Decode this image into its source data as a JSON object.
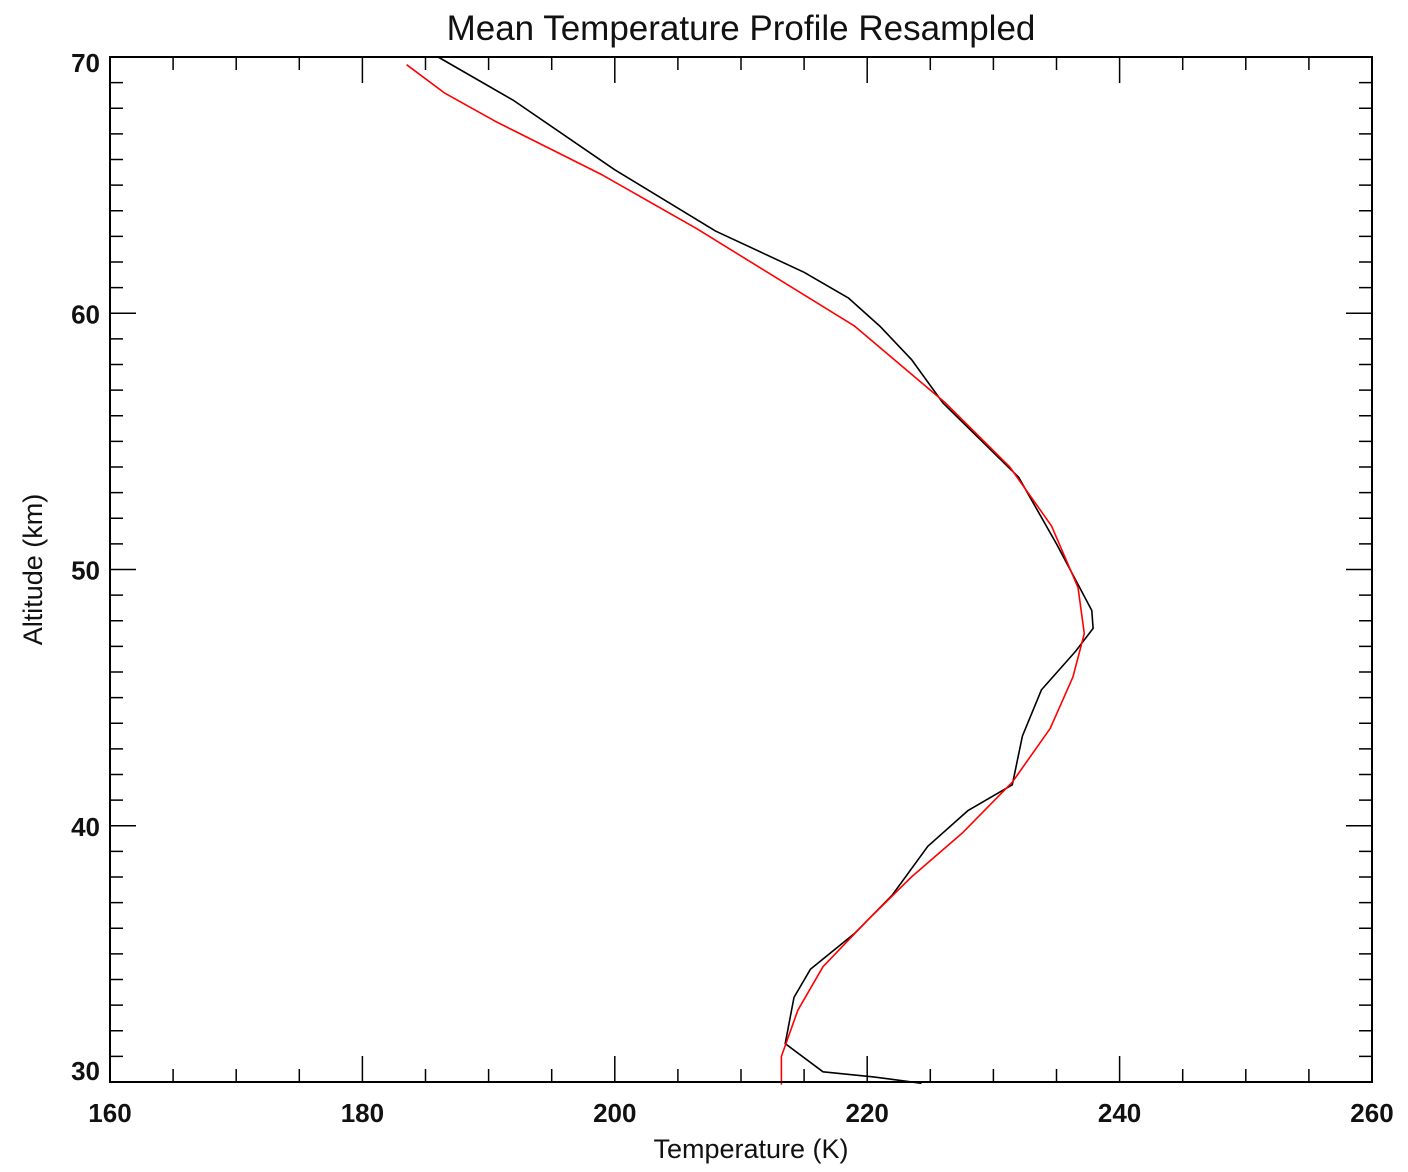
{
  "chart_data": {
    "type": "line",
    "title": "Mean Temperature Profile Resampled",
    "xlabel": "Temperature (K)",
    "ylabel": "Altitude (km)",
    "xlim": [
      160,
      260
    ],
    "ylim": [
      30,
      70
    ],
    "xticks": [
      160,
      180,
      200,
      220,
      240,
      260
    ],
    "xtick_labels": [
      "160",
      "180",
      "200",
      "220",
      "240",
      "260"
    ],
    "yticks": [
      30,
      40,
      50,
      60,
      70
    ],
    "ytick_labels": [
      "30",
      "40",
      "50",
      "60",
      "70"
    ],
    "grid": false,
    "series": [
      {
        "color": "#000000",
        "points": [
          [
            224.3,
            29.95
          ],
          [
            220.5,
            30.2
          ],
          [
            216.5,
            30.4
          ],
          [
            213.5,
            31.5
          ],
          [
            214.2,
            33.3
          ],
          [
            215.5,
            34.4
          ],
          [
            219.0,
            35.8
          ],
          [
            222.0,
            37.3
          ],
          [
            224.8,
            39.2
          ],
          [
            228.0,
            40.6
          ],
          [
            231.5,
            41.6
          ],
          [
            232.3,
            43.5
          ],
          [
            233.8,
            45.3
          ],
          [
            236.5,
            46.8
          ],
          [
            237.9,
            47.7
          ],
          [
            237.8,
            48.4
          ],
          [
            235.0,
            51.0
          ],
          [
            232.0,
            53.6
          ],
          [
            226.0,
            56.5
          ],
          [
            223.5,
            58.2
          ],
          [
            221.0,
            59.5
          ],
          [
            218.5,
            60.6
          ],
          [
            215.0,
            61.6
          ],
          [
            208.0,
            63.2
          ],
          [
            200.0,
            65.6
          ],
          [
            192.0,
            68.3
          ],
          [
            186.0,
            70.0
          ]
        ]
      },
      {
        "color": "#ff0000",
        "points": [
          [
            213.2,
            29.9
          ],
          [
            213.2,
            31.0
          ],
          [
            214.5,
            32.8
          ],
          [
            216.5,
            34.5
          ],
          [
            220.0,
            36.3
          ],
          [
            223.5,
            38.0
          ],
          [
            227.5,
            39.7
          ],
          [
            231.5,
            41.7
          ],
          [
            234.5,
            43.8
          ],
          [
            236.3,
            45.8
          ],
          [
            237.2,
            47.5
          ],
          [
            236.7,
            49.3
          ],
          [
            234.6,
            51.7
          ],
          [
            231.3,
            54.0
          ],
          [
            226.2,
            56.5
          ],
          [
            219.0,
            59.5
          ],
          [
            206.5,
            63.3
          ],
          [
            199.0,
            65.4
          ],
          [
            190.5,
            67.5
          ],
          [
            186.5,
            68.6
          ],
          [
            183.5,
            69.7
          ]
        ]
      }
    ]
  }
}
